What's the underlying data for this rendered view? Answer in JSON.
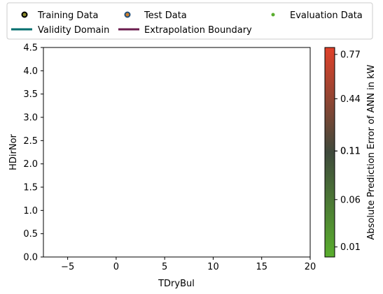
{
  "chart_data": {
    "type": "scatter",
    "xlabel": "TDryBul",
    "ylabel": "HDirNor",
    "xlim": [
      -7.5,
      20
    ],
    "ylim": [
      0,
      4.5
    ],
    "x_ticks": [
      -5,
      0,
      5,
      10,
      15,
      20
    ],
    "y_ticks": [
      0.0,
      0.5,
      1.0,
      1.5,
      2.0,
      2.5,
      3.0,
      3.5,
      4.0,
      4.5
    ],
    "grid": false,
    "legend_position": "top",
    "legend": [
      {
        "label": "Training Data",
        "kind": "marker-ring",
        "edge": "#000000",
        "face": "#8a8a2a"
      },
      {
        "label": "Test Data",
        "kind": "marker-ring",
        "edge": "#1f4e79",
        "face": "#d27f2a"
      },
      {
        "label": "Evaluation Data",
        "kind": "dot",
        "color": "#5aae2e"
      },
      {
        "label": "Validity Domain",
        "kind": "line",
        "color": "#006e6e"
      },
      {
        "label": "Extrapolation Boundary",
        "kind": "line",
        "color": "#6b1c4e"
      }
    ],
    "series": [],
    "colorbar": {
      "label": "Absolute Prediction Error of ANN in kW",
      "ticks": [
        {
          "label": "0.77",
          "frac": 0.967
        },
        {
          "label": "0.44",
          "frac": 0.755
        },
        {
          "label": "0.11",
          "frac": 0.506
        },
        {
          "label": "0.11",
          "frac": 0.506
        },
        {
          "label": "0.06",
          "frac": 0.274
        },
        {
          "label": "0.01",
          "frac": 0.048
        }
      ],
      "colors": [
        "#5aae2e",
        "#3f4a3c",
        "#e0412a"
      ]
    }
  }
}
